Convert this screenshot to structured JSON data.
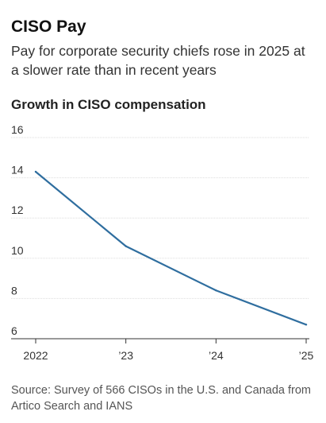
{
  "header": {
    "title": "CISO Pay",
    "subtitle": "Pay for corporate security chiefs rose in 2025 at a slower rate than in recent years"
  },
  "chart_heading": "Growth in CISO compensation",
  "source": "Source: Survey of 566 CISOs in the U.S. and Canada from Artico Search and IANS",
  "colors": {
    "line": "#2f6e9f",
    "grid": "#dddddd",
    "axis": "#333333"
  },
  "chart_data": {
    "type": "line",
    "title": "Growth in CISO compensation",
    "x": [
      "2022",
      "’23",
      "’24",
      "’25"
    ],
    "series": [
      {
        "values": [
          14.3,
          10.6,
          8.4,
          6.7
        ]
      }
    ],
    "ylim": [
      6,
      16
    ],
    "yticks": [
      "6",
      "8",
      "10",
      "12",
      "14",
      "16"
    ],
    "grid": true,
    "legend": "none"
  }
}
